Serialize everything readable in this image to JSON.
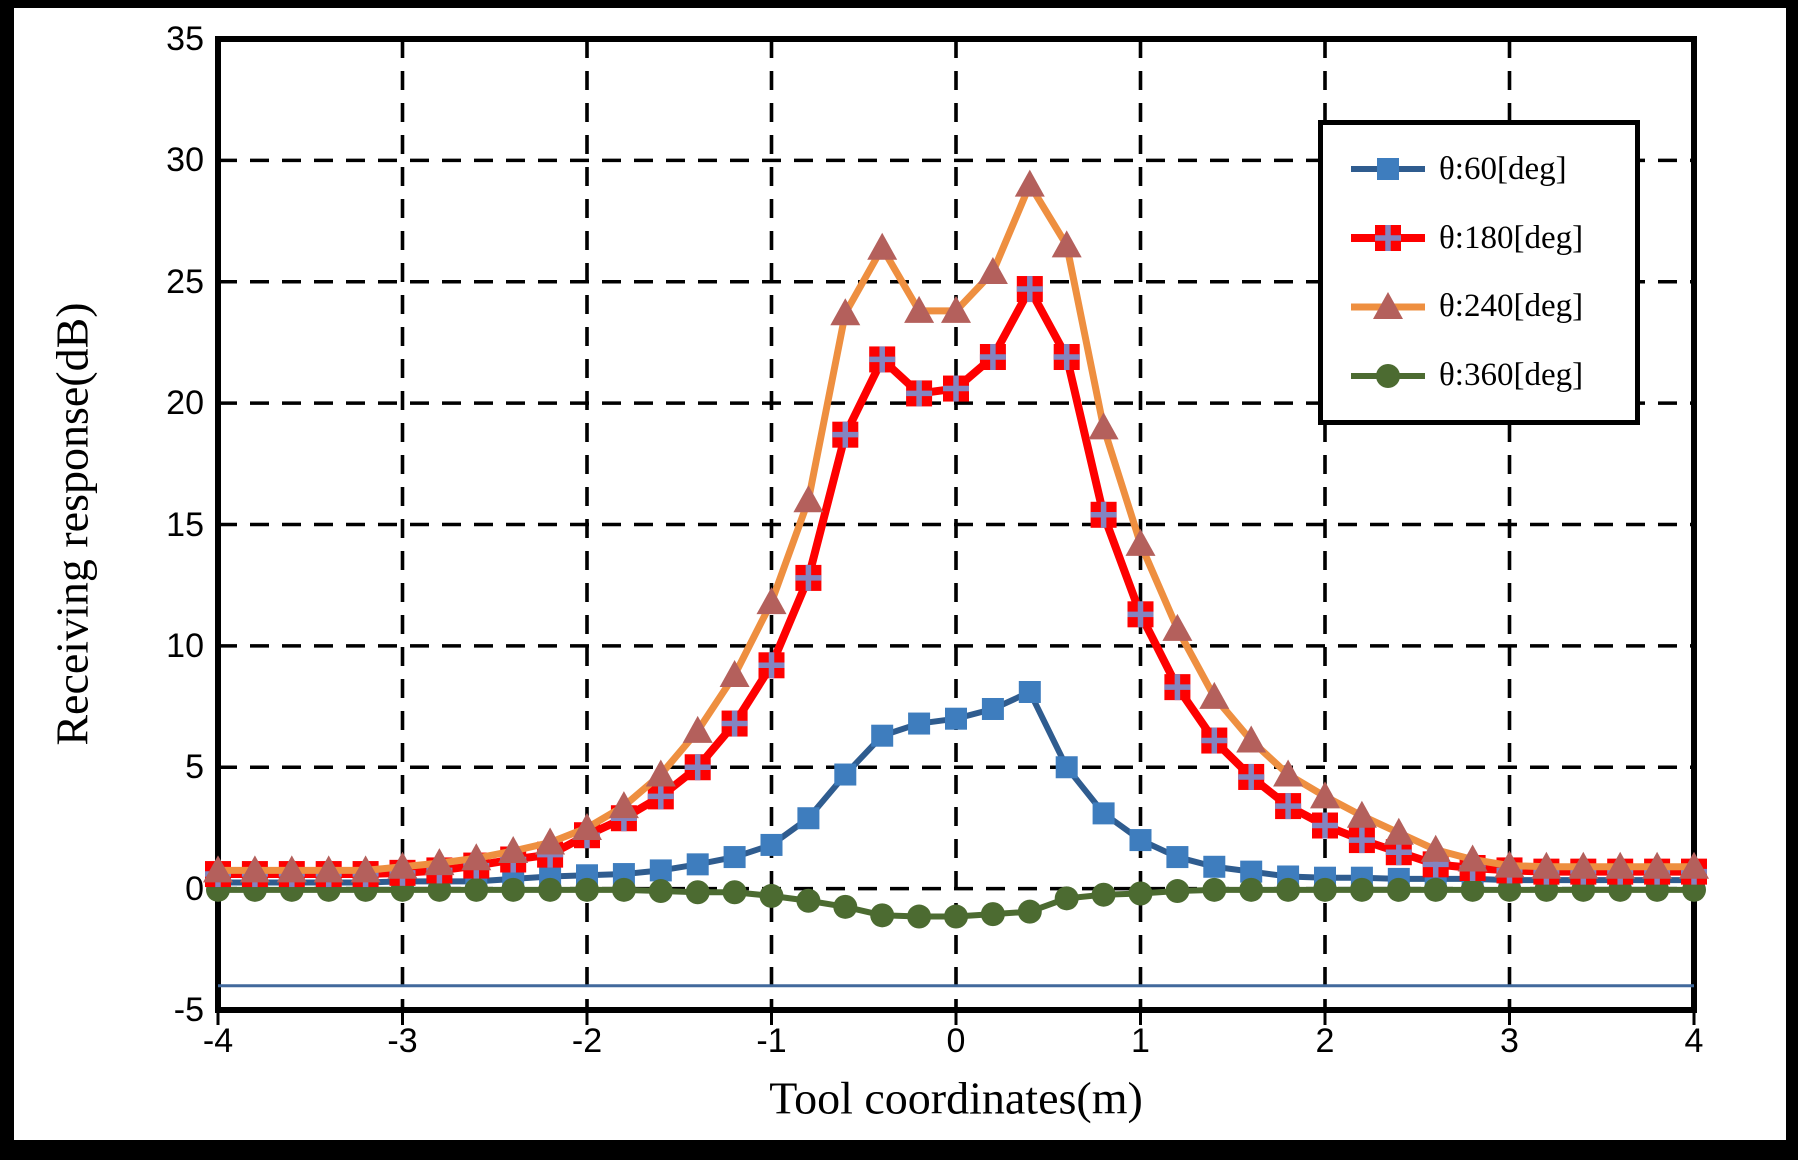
{
  "figure": {
    "frame_color": "#000000",
    "background": "#ffffff",
    "grid_color": "#000000"
  },
  "chart_data": {
    "type": "line",
    "title": "",
    "xlabel": "Tool coordinates(m)",
    "ylabel": "Receiving response(dB)",
    "xlim": [
      -4,
      4
    ],
    "ylim": [
      -5,
      35
    ],
    "x_ticks": [
      -4,
      -3,
      -2,
      -1,
      0,
      1,
      2,
      3,
      4
    ],
    "y_ticks": [
      35,
      30,
      25,
      20,
      15,
      10,
      5,
      0,
      -5
    ],
    "grid": "dashed-black-both-axes",
    "legend_position": "top-right",
    "x": [
      -4,
      -3.8,
      -3.6,
      -3.4,
      -3.2,
      -3,
      -2.8,
      -2.6,
      -2.4,
      -2.2,
      -2,
      -1.8,
      -1.6,
      -1.4,
      -1.2,
      -1,
      -0.8,
      -0.6,
      -0.4,
      -0.2,
      0,
      0.2,
      0.4,
      0.6,
      0.8,
      1,
      1.2,
      1.4,
      1.6,
      1.8,
      2,
      2.2,
      2.4,
      2.6,
      2.8,
      3,
      3.2,
      3.4,
      3.6,
      3.8,
      4
    ],
    "series": [
      {
        "id": "theta-60",
        "name": "θ:60[deg]",
        "marker": "square",
        "line_color": "#2F5C8F",
        "marker_color": "#3E7DBE",
        "values": [
          0.25,
          0.25,
          0.25,
          0.25,
          0.25,
          0.3,
          0.3,
          0.3,
          0.4,
          0.5,
          0.55,
          0.6,
          0.75,
          1,
          1.3,
          1.8,
          2.9,
          4.7,
          6.3,
          6.8,
          7,
          7.4,
          8.1,
          5,
          3.1,
          2,
          1.3,
          0.9,
          0.7,
          0.5,
          0.45,
          0.45,
          0.4,
          0.4,
          0.4,
          0.35,
          0.35,
          0.35,
          0.35,
          0.35,
          0.35
        ]
      },
      {
        "id": "theta-180",
        "name": "θ:180[deg]",
        "marker": "square-plus",
        "line_color": "#FE0000",
        "marker_color": "#FE0000",
        "plus_color": "#8484C0",
        "values": [
          0.6,
          0.6,
          0.6,
          0.6,
          0.6,
          0.65,
          0.75,
          0.95,
          1.2,
          1.4,
          2.2,
          2.9,
          3.8,
          5,
          6.8,
          9.2,
          12.8,
          18.7,
          21.8,
          20.4,
          20.6,
          21.9,
          24.7,
          21.9,
          15.4,
          11.3,
          8.3,
          6.1,
          4.6,
          3.4,
          2.6,
          2,
          1.5,
          1,
          0.85,
          0.75,
          0.7,
          0.7,
          0.7,
          0.7,
          0.7
        ]
      },
      {
        "id": "theta-240",
        "name": "θ:240[deg]",
        "marker": "triangle",
        "line_color": "#EE8F40",
        "marker_color": "#B4605C",
        "values": [
          0.75,
          0.75,
          0.75,
          0.75,
          0.75,
          0.9,
          1.05,
          1.25,
          1.55,
          1.9,
          2.5,
          3.4,
          4.7,
          6.5,
          8.8,
          11.8,
          16,
          23.7,
          26.4,
          23.8,
          23.8,
          25.4,
          29,
          26.5,
          19,
          14.2,
          10.7,
          7.9,
          6.1,
          4.7,
          3.8,
          3,
          2.3,
          1.6,
          1.2,
          0.95,
          0.9,
          0.9,
          0.9,
          0.9,
          0.9
        ]
      },
      {
        "id": "theta-360",
        "name": "θ:360[deg]",
        "marker": "circle",
        "line_color": "#4C6B31",
        "marker_color": "#4C6B31",
        "values": [
          -0.05,
          -0.05,
          -0.05,
          -0.05,
          -0.05,
          -0.05,
          -0.05,
          -0.05,
          -0.05,
          -0.05,
          -0.05,
          -0.05,
          -0.1,
          -0.15,
          -0.15,
          -0.3,
          -0.5,
          -0.75,
          -1.1,
          -1.15,
          -1.15,
          -1.05,
          -0.95,
          -0.4,
          -0.25,
          -0.2,
          -0.1,
          -0.05,
          -0.05,
          -0.05,
          -0.05,
          -0.05,
          -0.05,
          -0.05,
          -0.05,
          -0.05,
          -0.05,
          -0.05,
          -0.05,
          -0.05,
          -0.05
        ]
      }
    ],
    "reference_line": {
      "y": -4,
      "color": "#41699C"
    }
  }
}
